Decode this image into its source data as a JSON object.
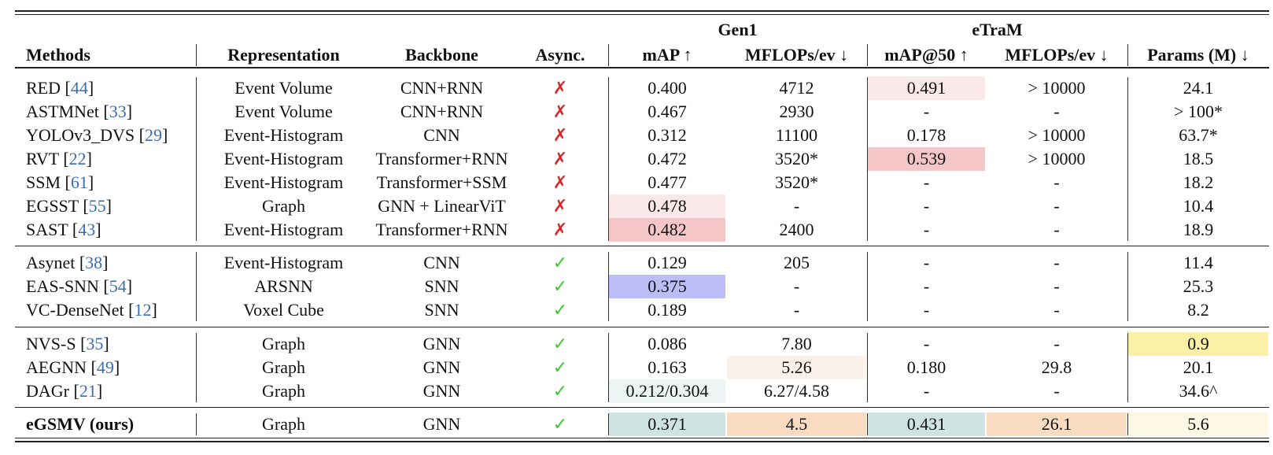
{
  "table": {
    "group_headers": [
      "Gen1",
      "eTraM"
    ],
    "columns": [
      "Methods",
      "Representation",
      "Backbone",
      "Async.",
      "mAP ↑",
      "MFLOPs/ev ↓",
      "mAP@50 ↑",
      "MFLOPs/ev ↓",
      "Params (M) ↓"
    ],
    "sections": [
      [
        [
          "RED [44]",
          "Event Volume",
          "CNN+RNN",
          "✗",
          "0.400",
          "4712",
          "0.491",
          "> 10000",
          "24.1"
        ],
        [
          "ASTMNet [33]",
          "Event Volume",
          "CNN+RNN",
          "✗",
          "0.467",
          "2930",
          "-",
          "-",
          "> 100*"
        ],
        [
          "YOLOv3_DVS [29]",
          "Event-Histogram",
          "CNN",
          "✗",
          "0.312",
          "11100",
          "0.178",
          "> 10000",
          "63.7*"
        ],
        [
          "RVT [22]",
          "Event-Histogram",
          "Transformer+RNN",
          "✗",
          "0.472",
          "3520*",
          "0.539",
          "> 10000",
          "18.5"
        ],
        [
          "SSM [61]",
          "Event-Histogram",
          "Transformer+SSM",
          "✗",
          "0.477",
          "3520*",
          "-",
          "-",
          "18.2"
        ],
        [
          "EGSST [55]",
          "Graph",
          "GNN + LinearViT",
          "✗",
          "0.478",
          "-",
          "-",
          "-",
          "10.4"
        ],
        [
          "SAST [43]",
          "Event-Histogram",
          "Transformer+RNN",
          "✗",
          "0.482",
          "2400",
          "-",
          "-",
          "18.9"
        ]
      ],
      [
        [
          "Asynet [38]",
          "Event-Histogram",
          "CNN",
          "✓",
          "0.129",
          "205",
          "-",
          "-",
          "11.4"
        ],
        [
          "EAS-SNN [54]",
          "ARSNN",
          "SNN",
          "✓",
          "0.375",
          "-",
          "-",
          "-",
          "25.3"
        ],
        [
          "VC-DenseNet [12]",
          "Voxel Cube",
          "SNN",
          "✓",
          "0.189",
          "-",
          "-",
          "-",
          "8.2"
        ]
      ],
      [
        [
          "NVS-S [35]",
          "Graph",
          "GNN",
          "✓",
          "0.086",
          "7.80",
          "-",
          "-",
          "0.9"
        ],
        [
          "AEGNN [49]",
          "Graph",
          "GNN",
          "✓",
          "0.163",
          "5.26",
          "0.180",
          "29.8",
          "20.1"
        ],
        [
          "DAGr [21]",
          "Graph",
          "GNN",
          "✓",
          "0.212/0.304",
          "6.27/4.58",
          "-",
          "-",
          "34.6^"
        ]
      ],
      [
        [
          "eGSMV (ours)",
          "Graph",
          "GNN",
          "✓",
          "0.371",
          "4.5",
          "0.431",
          "26.1",
          "5.6"
        ]
      ]
    ]
  }
}
